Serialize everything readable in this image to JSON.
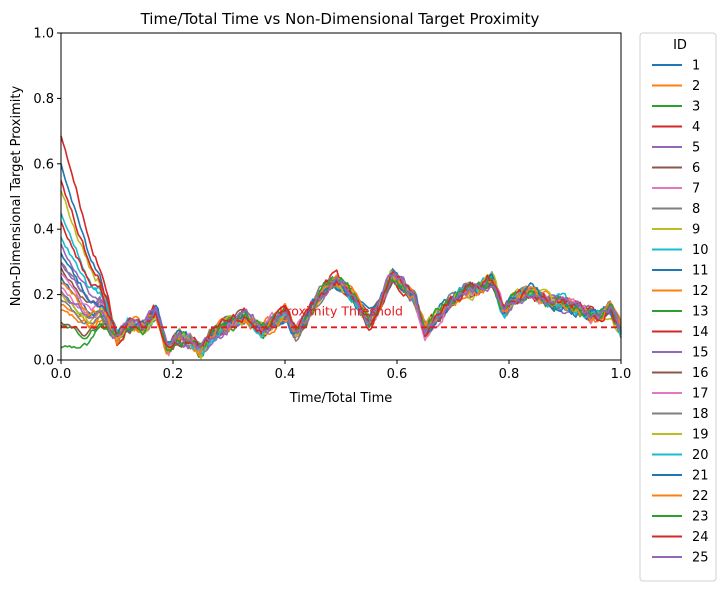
{
  "chart_data": {
    "type": "line",
    "title": "Time/Total Time vs Non-Dimensional Target Proximity",
    "xlabel": "Time/Total Time",
    "ylabel": "Non-Dimensional Target Proximity",
    "xlim": [
      0,
      1
    ],
    "ylim": [
      0,
      1
    ],
    "xticks": [
      "0.0",
      "0.2",
      "0.4",
      "0.6",
      "0.8",
      "1.0"
    ],
    "yticks": [
      "0.0",
      "0.2",
      "0.4",
      "0.6",
      "0.8",
      "1.0"
    ],
    "grid": false,
    "legend": {
      "title": "ID",
      "placement": "outside-right"
    },
    "threshold": {
      "value": 0.1,
      "label": "Proximity Threshold",
      "color": "#e41a1c",
      "label_x": 0.5
    },
    "common_trend": {
      "x": [
        0.05,
        0.07,
        0.1,
        0.12,
        0.15,
        0.17,
        0.19,
        0.21,
        0.23,
        0.25,
        0.27,
        0.3,
        0.33,
        0.36,
        0.38,
        0.4,
        0.42,
        0.45,
        0.48,
        0.5,
        0.52,
        0.55,
        0.57,
        0.59,
        0.61,
        0.63,
        0.65,
        0.67,
        0.69,
        0.72,
        0.75,
        0.77,
        0.79,
        0.81,
        0.84,
        0.87,
        0.9,
        0.93,
        0.96,
        0.98,
        1.0
      ],
      "y": [
        0.05,
        0.12,
        0.07,
        0.11,
        0.1,
        0.15,
        0.03,
        0.07,
        0.06,
        0.03,
        0.08,
        0.11,
        0.13,
        0.09,
        0.12,
        0.14,
        0.08,
        0.17,
        0.24,
        0.24,
        0.2,
        0.12,
        0.17,
        0.26,
        0.23,
        0.19,
        0.09,
        0.13,
        0.17,
        0.21,
        0.22,
        0.25,
        0.15,
        0.19,
        0.21,
        0.18,
        0.17,
        0.15,
        0.13,
        0.16,
        0.09
      ]
    },
    "series": [
      {
        "name": "1",
        "color": "#1f77b4",
        "y0": 0.6
      },
      {
        "name": "2",
        "color": "#ff7f0e",
        "y0": 0.17
      },
      {
        "name": "3",
        "color": "#2ca02c",
        "y0": 0.04
      },
      {
        "name": "4",
        "color": "#d62728",
        "y0": 0.69
      },
      {
        "name": "5",
        "color": "#9467bd",
        "y0": 0.35
      },
      {
        "name": "6",
        "color": "#8c564b",
        "y0": 0.28
      },
      {
        "name": "7",
        "color": "#e377c2",
        "y0": 0.22
      },
      {
        "name": "8",
        "color": "#7f7f7f",
        "y0": 0.3
      },
      {
        "name": "9",
        "color": "#bcbd22",
        "y0": 0.52
      },
      {
        "name": "10",
        "color": "#17becf",
        "y0": 0.38
      },
      {
        "name": "11",
        "color": "#1f77b4",
        "y0": 0.25
      },
      {
        "name": "12",
        "color": "#ff7f0e",
        "y0": 0.15
      },
      {
        "name": "13",
        "color": "#2ca02c",
        "y0": 0.2
      },
      {
        "name": "14",
        "color": "#d62728",
        "y0": 0.55
      },
      {
        "name": "15",
        "color": "#9467bd",
        "y0": 0.3
      },
      {
        "name": "16",
        "color": "#8c564b",
        "y0": 0.12
      },
      {
        "name": "17",
        "color": "#e377c2",
        "y0": 0.26
      },
      {
        "name": "18",
        "color": "#7f7f7f",
        "y0": 0.18
      },
      {
        "name": "19",
        "color": "#bcbd22",
        "y0": 0.2
      },
      {
        "name": "20",
        "color": "#17becf",
        "y0": 0.45
      },
      {
        "name": "21",
        "color": "#1f77b4",
        "y0": 0.33
      },
      {
        "name": "22",
        "color": "#ff7f0e",
        "y0": 0.24
      },
      {
        "name": "23",
        "color": "#2ca02c",
        "y0": 0.1
      },
      {
        "name": "24",
        "color": "#d62728",
        "y0": 0.42
      },
      {
        "name": "25",
        "color": "#9467bd",
        "y0": 0.21
      }
    ]
  }
}
